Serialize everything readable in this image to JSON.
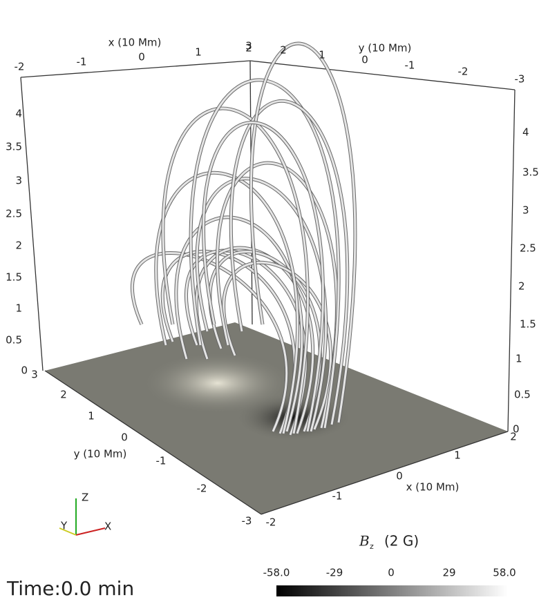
{
  "top_x_axis": {
    "title": "x (10 Mm)",
    "ticks": [
      "-2",
      "-1",
      "0",
      "1",
      "2"
    ]
  },
  "top_y_axis": {
    "title": "y (10 Mm)",
    "ticks": [
      "3",
      "2",
      "1",
      "0",
      "-1",
      "-2",
      "-3"
    ]
  },
  "left_z_axis": {
    "ticks": [
      "4",
      "3.5",
      "3",
      "2.5",
      "2",
      "1.5",
      "1",
      "0.5",
      "0"
    ]
  },
  "right_z_axis": {
    "ticks": [
      "4",
      "3.5",
      "3",
      "2.5",
      "2",
      "1.5",
      "1",
      "0.5",
      "0"
    ]
  },
  "bottom_y_axis": {
    "title": "y (10 Mm)",
    "ticks": [
      "3",
      "2",
      "1",
      "0",
      "-1",
      "-2",
      "-3"
    ]
  },
  "bottom_x_axis": {
    "title": "x (10 Mm)",
    "ticks": [
      "-2",
      "-1",
      "0",
      "1",
      "2"
    ]
  },
  "colorbar": {
    "title_symbol": "B",
    "title_subscript": "z",
    "title_unit": "(2 G)",
    "ticks": [
      "-58.0",
      "-29",
      "0",
      "29",
      "58.0"
    ]
  },
  "time_label": "Time:0.0 min",
  "orientation": {
    "z": "Z",
    "y": "Y",
    "x": "X"
  }
}
